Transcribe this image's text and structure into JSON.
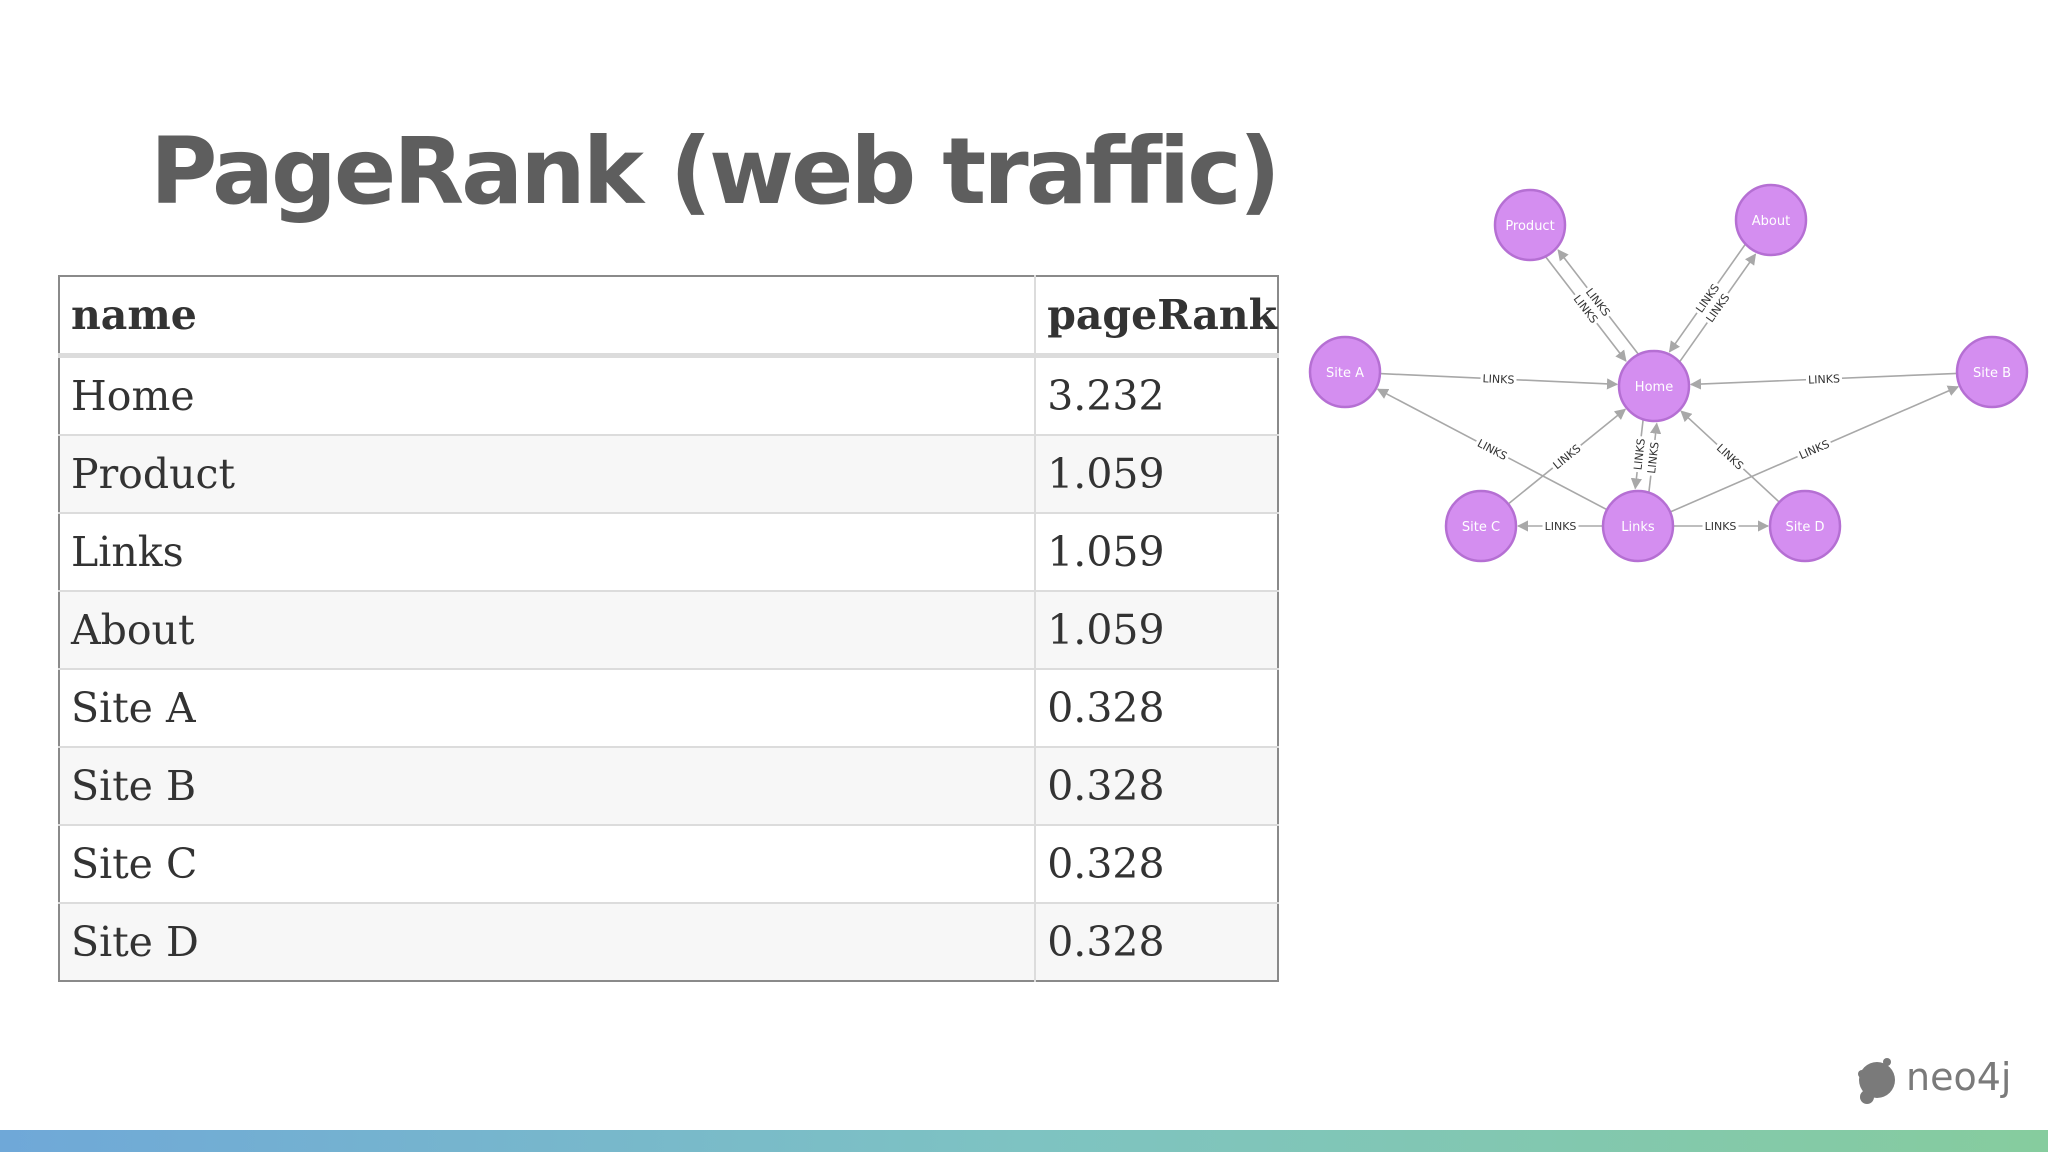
{
  "title": "PageRank (web traffic)",
  "table": {
    "headers": [
      "name",
      "pageRank"
    ],
    "rows": [
      [
        "Home",
        "3.232"
      ],
      [
        "Product",
        "1.059"
      ],
      [
        "Links",
        "1.059"
      ],
      [
        "About",
        "1.059"
      ],
      [
        "Site A",
        "0.328"
      ],
      [
        "Site B",
        "0.328"
      ],
      [
        "Site C",
        "0.328"
      ],
      [
        "Site D",
        "0.328"
      ]
    ]
  },
  "graph": {
    "node_color": "#d48ef0",
    "node_stroke": "#b56fd3",
    "edge_color": "#a8a8a8",
    "edge_label": "LINKS",
    "nodes": [
      "Product",
      "About",
      "Site A",
      "Home",
      "Site B",
      "Site C",
      "Links",
      "Site D"
    ],
    "edges": [
      {
        "from": "Product",
        "to": "Home"
      },
      {
        "from": "Home",
        "to": "Product"
      },
      {
        "from": "Home",
        "to": "About"
      },
      {
        "from": "About",
        "to": "Home"
      },
      {
        "from": "Site A",
        "to": "Home"
      },
      {
        "from": "Site B",
        "to": "Home"
      },
      {
        "from": "Links",
        "to": "Site A"
      },
      {
        "from": "Site C",
        "to": "Home"
      },
      {
        "from": "Home",
        "to": "Links"
      },
      {
        "from": "Links",
        "to": "Home"
      },
      {
        "from": "Site D",
        "to": "Home"
      },
      {
        "from": "Links",
        "to": "Site B"
      },
      {
        "from": "Links",
        "to": "Site C"
      },
      {
        "from": "Links",
        "to": "Site D"
      }
    ]
  },
  "logo": {
    "text": "neo4j",
    "color": "#7a7a7a"
  },
  "footer": {
    "gradient": [
      "#6fa8d8",
      "#7ec3c2",
      "#86cc9e"
    ]
  }
}
